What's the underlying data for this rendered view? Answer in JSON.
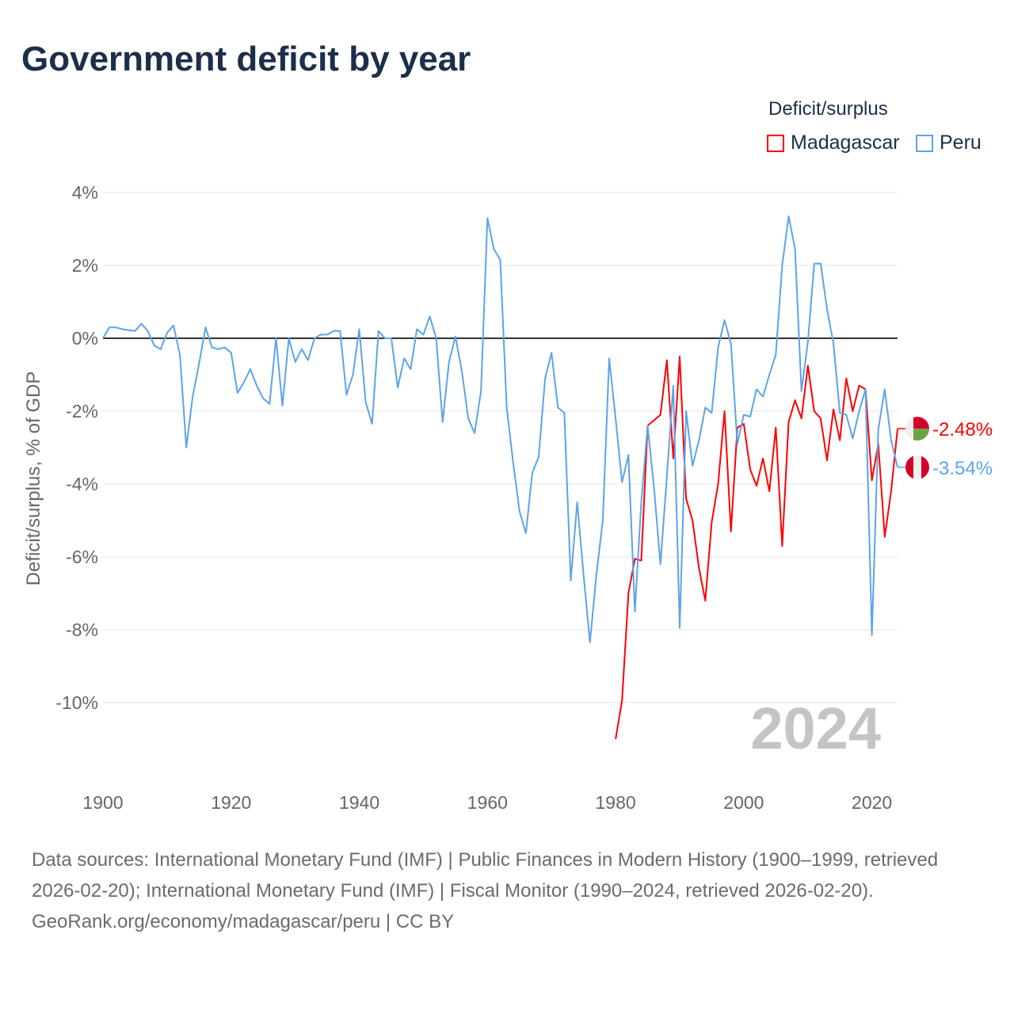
{
  "title": "Government deficit by year",
  "legend": {
    "title": "Deficit/surplus",
    "items": [
      {
        "name": "Madagascar",
        "color": "#ff0000"
      },
      {
        "name": "Peru",
        "color": "#5ba4ea"
      }
    ]
  },
  "watermark_year": "2024",
  "footer": {
    "sources": "Data sources: International Monetary Fund (IMF) | Public Finances in Modern History (1900–1999, retrieved 2026-02-20); International Monetary Fund (IMF) | Fiscal Monitor (1990–2024, retrieved 2026-02-20).",
    "credit": "GeoRank.org/economy/madagascar/peru | CC BY"
  },
  "chart_data": {
    "type": "line",
    "title": "Government deficit by year",
    "xlabel": "",
    "ylabel": "Deficit/surplus, % of GDP",
    "xlim": [
      1900,
      2024
    ],
    "ylim": [
      -11.5,
      4
    ],
    "xticks": [
      1900,
      1920,
      1940,
      1960,
      1980,
      2000,
      2020
    ],
    "xtick_labels": [
      "1900",
      "1920",
      "1940",
      "1960",
      "1980",
      "2000",
      "2020"
    ],
    "yticks": [
      4,
      2,
      0,
      -2,
      -4,
      -6,
      -8,
      -10
    ],
    "ytick_labels": [
      "4%",
      "2%",
      "0%",
      "-2%",
      "-4%",
      "-6%",
      "-8%",
      "-10%"
    ],
    "grid": true,
    "legend_position": "top-right",
    "series": [
      {
        "name": "Madagascar",
        "color": "#ff0000",
        "end_label": "-2.48%",
        "x": [
          1980,
          1981,
          1982,
          1983,
          1984,
          1985,
          1986,
          1987,
          1988,
          1989,
          1990,
          1991,
          1992,
          1993,
          1994,
          1995,
          1996,
          1997,
          1998,
          1999,
          2000,
          2001,
          2002,
          2003,
          2004,
          2005,
          2006,
          2007,
          2008,
          2009,
          2010,
          2011,
          2012,
          2013,
          2014,
          2015,
          2016,
          2017,
          2018,
          2019,
          2020,
          2021,
          2022,
          2023,
          2024
        ],
        "values": [
          -11.0,
          -9.95,
          -7.0,
          -6.05,
          -6.1,
          -2.4,
          -2.25,
          -2.1,
          -0.6,
          -3.3,
          -0.5,
          -4.4,
          -5.0,
          -6.3,
          -7.2,
          -5.05,
          -4.0,
          -2.0,
          -5.3,
          -2.45,
          -2.35,
          -3.6,
          -4.05,
          -3.3,
          -4.2,
          -2.45,
          -5.7,
          -2.3,
          -1.7,
          -2.2,
          -0.75,
          -2.0,
          -2.2,
          -3.35,
          -1.95,
          -2.8,
          -1.1,
          -2.0,
          -1.3,
          -1.4,
          -3.9,
          -2.9,
          -5.45,
          -4.2,
          -2.48
        ]
      },
      {
        "name": "Peru",
        "color": "#5ba4ea",
        "end_label": "-3.54%",
        "x": [
          1900,
          1901,
          1902,
          1903,
          1904,
          1905,
          1906,
          1907,
          1908,
          1909,
          1910,
          1911,
          1912,
          1913,
          1914,
          1915,
          1916,
          1917,
          1918,
          1919,
          1920,
          1921,
          1922,
          1923,
          1924,
          1925,
          1926,
          1927,
          1928,
          1929,
          1930,
          1931,
          1932,
          1933,
          1934,
          1935,
          1936,
          1937,
          1938,
          1939,
          1940,
          1941,
          1942,
          1943,
          1944,
          1945,
          1946,
          1947,
          1948,
          1949,
          1950,
          1951,
          1952,
          1953,
          1954,
          1955,
          1956,
          1957,
          1958,
          1959,
          1960,
          1961,
          1962,
          1963,
          1964,
          1965,
          1966,
          1967,
          1968,
          1969,
          1970,
          1971,
          1972,
          1973,
          1974,
          1975,
          1976,
          1977,
          1978,
          1979,
          1980,
          1981,
          1982,
          1983,
          1984,
          1985,
          1986,
          1987,
          1988,
          1989,
          1990,
          1991,
          1992,
          1993,
          1994,
          1995,
          1996,
          1997,
          1998,
          1999,
          2000,
          2001,
          2002,
          2003,
          2004,
          2005,
          2006,
          2007,
          2008,
          2009,
          2010,
          2011,
          2012,
          2013,
          2014,
          2015,
          2016,
          2017,
          2018,
          2019,
          2020,
          2021,
          2022,
          2023,
          2024
        ],
        "values": [
          0,
          0.3,
          0.3,
          0.25,
          0.22,
          0.2,
          0.4,
          0.2,
          -0.2,
          -0.3,
          0.15,
          0.35,
          -0.45,
          -3.0,
          -1.6,
          -0.7,
          0.3,
          -0.25,
          -0.3,
          -0.25,
          -0.4,
          -1.5,
          -1.2,
          -0.85,
          -1.3,
          -1.65,
          -1.8,
          0.0,
          -1.85,
          0.0,
          -0.65,
          -0.3,
          -0.6,
          0.0,
          0.1,
          0.1,
          0.2,
          0.2,
          -1.55,
          -1.0,
          0.25,
          -1.75,
          -2.35,
          0.2,
          0.0,
          0.0,
          -1.35,
          -0.55,
          -0.85,
          0.25,
          0.1,
          0.6,
          0.0,
          -2.3,
          -0.65,
          0.05,
          -0.9,
          -2.2,
          -2.6,
          -1.45,
          3.3,
          2.45,
          2.15,
          -1.9,
          -3.4,
          -4.75,
          -5.35,
          -3.7,
          -3.25,
          -1.1,
          -0.4,
          -1.9,
          -2.05,
          -6.65,
          -4.5,
          -6.5,
          -8.35,
          -6.5,
          -5.0,
          -0.55,
          -2.2,
          -3.95,
          -3.2,
          -7.5,
          -4.5,
          -2.4,
          -4.1,
          -6.2,
          -3.8,
          -1.3,
          -7.95,
          -2.0,
          -3.5,
          -2.8,
          -1.9,
          -2.05,
          -0.25,
          0.5,
          -0.15,
          -2.9,
          -2.1,
          -2.15,
          -1.4,
          -1.6,
          -1.0,
          -0.45,
          2.0,
          3.35,
          2.45,
          -1.45,
          -0.1,
          2.05,
          2.05,
          0.8,
          -0.15,
          -2.05,
          -2.1,
          -2.75,
          -2.0,
          -1.4,
          -8.15,
          -2.5,
          -1.4,
          -2.8,
          -3.54
        ]
      }
    ]
  }
}
